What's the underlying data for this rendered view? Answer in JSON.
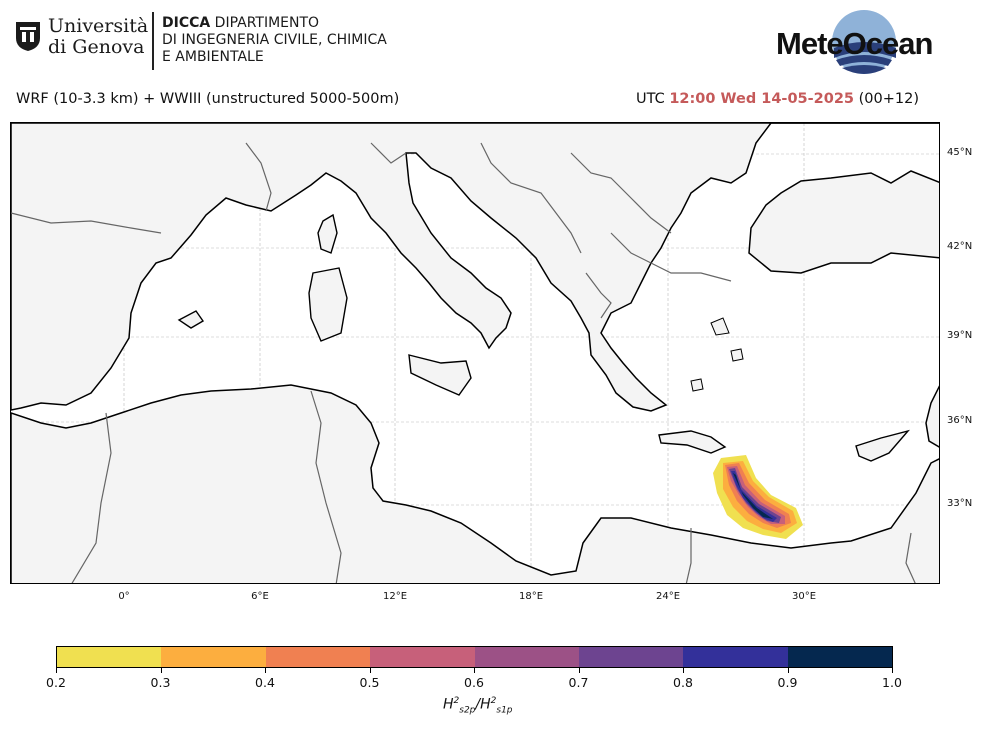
{
  "header": {
    "university_line1": "Università",
    "university_line2": "di Genova",
    "dept_abbr": "DICCA",
    "dept_line1": "DIPARTIMENTO",
    "dept_line2": "DI INGEGNERIA CIVILE, CHIMICA",
    "dept_line3": "E AMBIENTALE",
    "brand": "MeteOcean",
    "model_title": "WRF (10-3.3 km) + WWIII (unstructured 5000-500m)",
    "utc_prefix": "UTC",
    "valid_time": "12:00 Wed 14-05-2025",
    "forecast_step": "(00+12)"
  },
  "map": {
    "lat_labels": [
      "45°N",
      "42°N",
      "39°N",
      "36°N",
      "33°N"
    ],
    "lon_labels": [
      "0°",
      "6°E",
      "12°E",
      "18°E",
      "24°E",
      "30°E"
    ],
    "colors": {
      "land": "#f4f4f4",
      "sea": "#ffffff",
      "coast": "#000000",
      "border": "#666666"
    }
  },
  "colorbar": {
    "ticks": [
      "0.2",
      "0.3",
      "0.4",
      "0.5",
      "0.6",
      "0.7",
      "0.8",
      "0.9",
      "1.0"
    ],
    "colors": [
      "#f0e050",
      "#fcae3f",
      "#f08051",
      "#c7607a",
      "#9c5186",
      "#6d4490",
      "#33309a",
      "#05284f"
    ],
    "label_main": "H",
    "label_sub1": "s2p",
    "label_sub2": "s1p",
    "label_exp": "2"
  }
}
